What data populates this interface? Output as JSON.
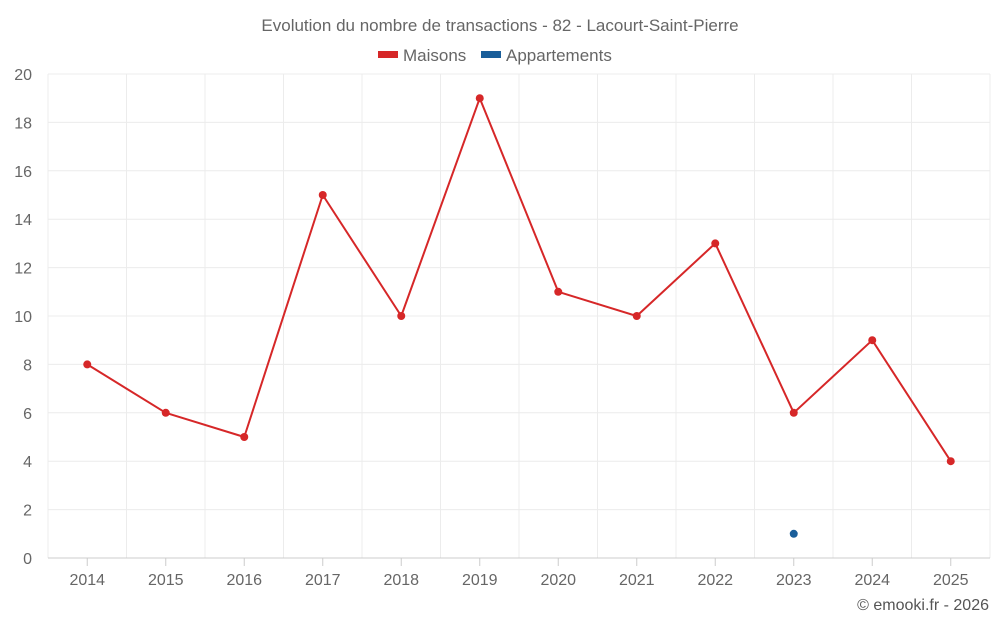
{
  "chart_data": {
    "type": "line",
    "title": "Evolution du nombre de transactions - 82 - Lacourt-Saint-Pierre",
    "categories": [
      "2014",
      "2015",
      "2016",
      "2017",
      "2018",
      "2019",
      "2020",
      "2021",
      "2022",
      "2023",
      "2024",
      "2025"
    ],
    "series": [
      {
        "name": "Maisons",
        "color": "#d62728",
        "values": [
          8,
          6,
          5,
          15,
          10,
          19,
          11,
          10,
          13,
          6,
          9,
          4
        ]
      },
      {
        "name": "Appartements",
        "color": "#1a5e9a",
        "values": [
          null,
          null,
          null,
          null,
          null,
          null,
          null,
          null,
          null,
          1,
          null,
          null
        ]
      }
    ],
    "ylim": [
      0,
      20
    ],
    "yticks": [
      0,
      2,
      4,
      6,
      8,
      10,
      12,
      14,
      16,
      18,
      20
    ],
    "grid": true,
    "legend": "top-center",
    "xlabel": "",
    "ylabel": ""
  },
  "credit": "© emooki.fr - 2026"
}
